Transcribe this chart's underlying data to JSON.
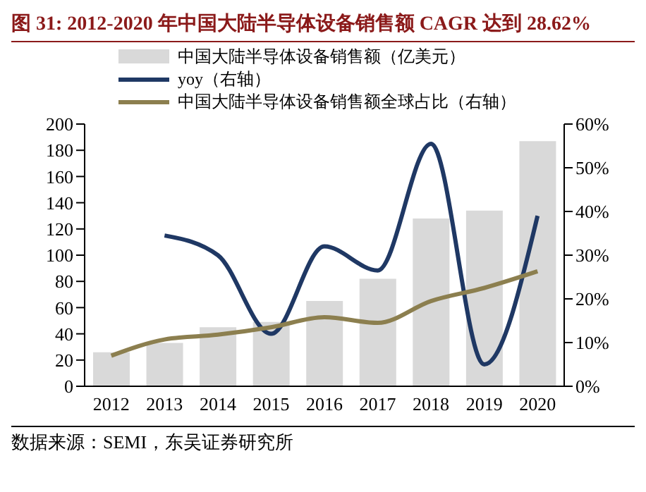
{
  "chart_data": {
    "type": "bar",
    "title": "图 31: 2012-2020 年中国大陆半导体设备销售额 CAGR 达到 28.62%",
    "categories": [
      "2012",
      "2013",
      "2014",
      "2015",
      "2016",
      "2017",
      "2018",
      "2019",
      "2020"
    ],
    "series": [
      {
        "name": "中国大陆半导体设备销售额（亿美元）",
        "color": "#d9d9d9",
        "values": [
          26,
          33,
          45,
          49,
          65,
          82,
          128,
          134,
          187
        ]
      },
      {
        "name": "yoy（右轴）",
        "type": "line",
        "axis": "y2",
        "color": "#1f3864",
        "values": [
          null,
          34.5,
          30,
          12,
          32,
          26.5,
          55.5,
          5,
          39
        ]
      },
      {
        "name": "中国大陆半导体设备销售额全球占比（右轴）",
        "type": "line",
        "axis": "y2",
        "color": "#8c7f4f",
        "values": [
          7,
          10.7,
          11.8,
          13.5,
          15.8,
          14.5,
          19.5,
          22.5,
          26.3
        ]
      }
    ],
    "ylim": [
      0,
      200
    ],
    "yticks": [
      0,
      20,
      40,
      60,
      80,
      100,
      120,
      140,
      160,
      180,
      200
    ],
    "y2lim": [
      0,
      60
    ],
    "y2ticks": [
      {
        "value": 0,
        "label": "0%"
      },
      {
        "value": 10,
        "label": "10%"
      },
      {
        "value": 20,
        "label": "20%"
      },
      {
        "value": 30,
        "label": "30%"
      },
      {
        "value": 40,
        "label": "40%"
      },
      {
        "value": 50,
        "label": "50%"
      },
      {
        "value": 60,
        "label": "60%"
      }
    ],
    "legend": "top left",
    "marker": "none",
    "annotations": [
      "数据来源：SEMI，东吴证券研究所"
    ]
  }
}
